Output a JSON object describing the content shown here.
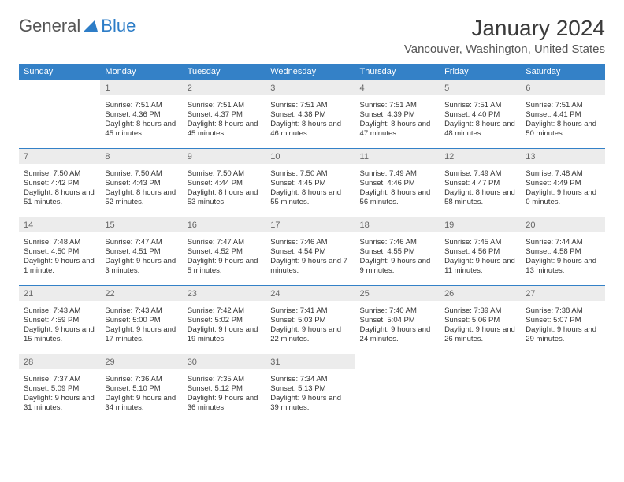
{
  "logo": {
    "part1": "General",
    "part2": "Blue"
  },
  "title": "January 2024",
  "location": "Vancouver, Washington, United States",
  "weekdays": [
    "Sunday",
    "Monday",
    "Tuesday",
    "Wednesday",
    "Thursday",
    "Friday",
    "Saturday"
  ],
  "colors": {
    "header_bg": "#3481c7",
    "header_text": "#ffffff",
    "daynum_bg": "#ececec",
    "daynum_text": "#666666",
    "body_text": "#333333",
    "logo_gray": "#555555",
    "logo_blue": "#2d7dc7",
    "border": "#3481c7"
  },
  "weeks": [
    {
      "nums": [
        "",
        "1",
        "2",
        "3",
        "4",
        "5",
        "6"
      ],
      "cells": [
        "",
        "Sunrise: 7:51 AM\nSunset: 4:36 PM\nDaylight: 8 hours and 45 minutes.",
        "Sunrise: 7:51 AM\nSunset: 4:37 PM\nDaylight: 8 hours and 45 minutes.",
        "Sunrise: 7:51 AM\nSunset: 4:38 PM\nDaylight: 8 hours and 46 minutes.",
        "Sunrise: 7:51 AM\nSunset: 4:39 PM\nDaylight: 8 hours and 47 minutes.",
        "Sunrise: 7:51 AM\nSunset: 4:40 PM\nDaylight: 8 hours and 48 minutes.",
        "Sunrise: 7:51 AM\nSunset: 4:41 PM\nDaylight: 8 hours and 50 minutes."
      ]
    },
    {
      "nums": [
        "7",
        "8",
        "9",
        "10",
        "11",
        "12",
        "13"
      ],
      "cells": [
        "Sunrise: 7:50 AM\nSunset: 4:42 PM\nDaylight: 8 hours and 51 minutes.",
        "Sunrise: 7:50 AM\nSunset: 4:43 PM\nDaylight: 8 hours and 52 minutes.",
        "Sunrise: 7:50 AM\nSunset: 4:44 PM\nDaylight: 8 hours and 53 minutes.",
        "Sunrise: 7:50 AM\nSunset: 4:45 PM\nDaylight: 8 hours and 55 minutes.",
        "Sunrise: 7:49 AM\nSunset: 4:46 PM\nDaylight: 8 hours and 56 minutes.",
        "Sunrise: 7:49 AM\nSunset: 4:47 PM\nDaylight: 8 hours and 58 minutes.",
        "Sunrise: 7:48 AM\nSunset: 4:49 PM\nDaylight: 9 hours and 0 minutes."
      ]
    },
    {
      "nums": [
        "14",
        "15",
        "16",
        "17",
        "18",
        "19",
        "20"
      ],
      "cells": [
        "Sunrise: 7:48 AM\nSunset: 4:50 PM\nDaylight: 9 hours and 1 minute.",
        "Sunrise: 7:47 AM\nSunset: 4:51 PM\nDaylight: 9 hours and 3 minutes.",
        "Sunrise: 7:47 AM\nSunset: 4:52 PM\nDaylight: 9 hours and 5 minutes.",
        "Sunrise: 7:46 AM\nSunset: 4:54 PM\nDaylight: 9 hours and 7 minutes.",
        "Sunrise: 7:46 AM\nSunset: 4:55 PM\nDaylight: 9 hours and 9 minutes.",
        "Sunrise: 7:45 AM\nSunset: 4:56 PM\nDaylight: 9 hours and 11 minutes.",
        "Sunrise: 7:44 AM\nSunset: 4:58 PM\nDaylight: 9 hours and 13 minutes."
      ]
    },
    {
      "nums": [
        "21",
        "22",
        "23",
        "24",
        "25",
        "26",
        "27"
      ],
      "cells": [
        "Sunrise: 7:43 AM\nSunset: 4:59 PM\nDaylight: 9 hours and 15 minutes.",
        "Sunrise: 7:43 AM\nSunset: 5:00 PM\nDaylight: 9 hours and 17 minutes.",
        "Sunrise: 7:42 AM\nSunset: 5:02 PM\nDaylight: 9 hours and 19 minutes.",
        "Sunrise: 7:41 AM\nSunset: 5:03 PM\nDaylight: 9 hours and 22 minutes.",
        "Sunrise: 7:40 AM\nSunset: 5:04 PM\nDaylight: 9 hours and 24 minutes.",
        "Sunrise: 7:39 AM\nSunset: 5:06 PM\nDaylight: 9 hours and 26 minutes.",
        "Sunrise: 7:38 AM\nSunset: 5:07 PM\nDaylight: 9 hours and 29 minutes."
      ]
    },
    {
      "nums": [
        "28",
        "29",
        "30",
        "31",
        "",
        "",
        ""
      ],
      "cells": [
        "Sunrise: 7:37 AM\nSunset: 5:09 PM\nDaylight: 9 hours and 31 minutes.",
        "Sunrise: 7:36 AM\nSunset: 5:10 PM\nDaylight: 9 hours and 34 minutes.",
        "Sunrise: 7:35 AM\nSunset: 5:12 PM\nDaylight: 9 hours and 36 minutes.",
        "Sunrise: 7:34 AM\nSunset: 5:13 PM\nDaylight: 9 hours and 39 minutes.",
        "",
        "",
        ""
      ]
    }
  ]
}
